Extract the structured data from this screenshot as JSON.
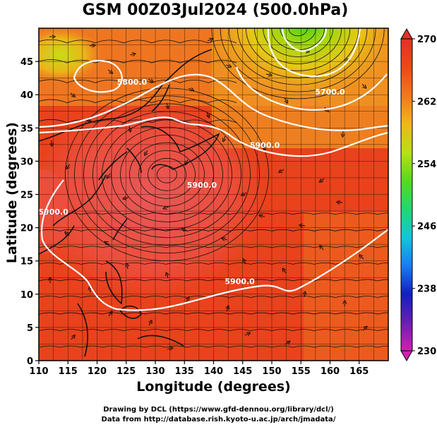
{
  "title": "GSM 00Z03Jul2024 (500.0hPa)",
  "xlabel": "Longitude (degrees)",
  "ylabel": "Latitude  (degrees)",
  "credit_line1": "Drawing by DCL (https://www.gfd-dennou.org/library/dcl/)",
  "credit_line2": "Data from http://database.rish.kyoto-u.ac.jp/arch/jmadata/",
  "x_ticks": [
    {
      "value": 110,
      "label": "110"
    },
    {
      "value": 115,
      "label": "115"
    },
    {
      "value": 120,
      "label": "120"
    },
    {
      "value": 125,
      "label": "125"
    },
    {
      "value": 130,
      "label": "130"
    },
    {
      "value": 135,
      "label": "135"
    },
    {
      "value": 140,
      "label": "140"
    },
    {
      "value": 145,
      "label": "145"
    },
    {
      "value": 150,
      "label": "150"
    },
    {
      "value": 155,
      "label": "155"
    },
    {
      "value": 160,
      "label": "160"
    },
    {
      "value": 165,
      "label": "165"
    }
  ],
  "y_ticks": [
    {
      "value": 0,
      "label": "0"
    },
    {
      "value": 5,
      "label": "5"
    },
    {
      "value": 10,
      "label": "10"
    },
    {
      "value": 15,
      "label": "15"
    },
    {
      "value": 20,
      "label": "20"
    },
    {
      "value": 25,
      "label": "25"
    },
    {
      "value": 30,
      "label": "30"
    },
    {
      "value": 35,
      "label": "35"
    },
    {
      "value": 40,
      "label": "40"
    },
    {
      "value": 45,
      "label": "45"
    }
  ],
  "x_range": [
    110,
    170
  ],
  "y_range": [
    0,
    50
  ],
  "colorbar": {
    "min": 230,
    "max": 270,
    "ticks": [
      {
        "value": 270,
        "label": "270"
      },
      {
        "value": 262,
        "label": "262"
      },
      {
        "value": 254,
        "label": "254"
      },
      {
        "value": 246,
        "label": "246"
      },
      {
        "value": 238,
        "label": "238"
      },
      {
        "value": 230,
        "label": "230"
      }
    ],
    "stops": [
      "#d020b0",
      "#6a1fb0",
      "#1020c0",
      "#1c7cf0",
      "#10c8d8",
      "#20d870",
      "#58d820",
      "#b8e010",
      "#f0b818",
      "#f07820",
      "#ee4818",
      "#e43028"
    ]
  },
  "contour_labels": [
    {
      "text": "5900.0",
      "lon": 138.0,
      "lat": 26.0
    },
    {
      "text": "5900.0",
      "lon": 112.5,
      "lat": 22.0
    },
    {
      "text": "5900.0",
      "lon": 148.8,
      "lat": 32.0
    },
    {
      "text": "5900.0",
      "lon": 144.5,
      "lat": 11.5
    },
    {
      "text": "5800.0",
      "lon": 126.0,
      "lat": 41.5
    },
    {
      "text": "5700.0",
      "lon": 160.0,
      "lat": 40.0
    }
  ]
}
